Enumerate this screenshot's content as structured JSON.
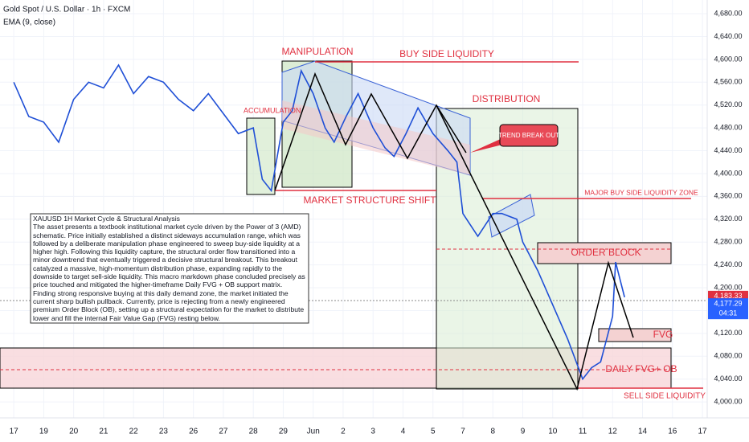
{
  "chart_data": {
    "type": "line",
    "title": "Gold Spot / U.S. Dollar · 1h · FXCM",
    "subtitle": "EMA (9, close)",
    "color": "#1f4fd6",
    "x": [
      0,
      0.5,
      1,
      1.5,
      2,
      2.5,
      3,
      3.5,
      4,
      4.5,
      5,
      5.5,
      6,
      6.5,
      7,
      7.5,
      8,
      8.3,
      8.6,
      9,
      9.3,
      9.6,
      10,
      10.4,
      10.7,
      11.1,
      11.5,
      12,
      12.4,
      12.7,
      13.1,
      13.5,
      14,
      14.5,
      14.8,
      15,
      15.5,
      16,
      16.3,
      16.8,
      17,
      17.5,
      18,
      18.5,
      19,
      19.3,
      19.6,
      20,
      20.1,
      20.4
    ],
    "values": [
      4560,
      4500,
      4490,
      4455,
      4530,
      4560,
      4550,
      4590,
      4540,
      4570,
      4560,
      4530,
      4510,
      4540,
      4505,
      4470,
      4480,
      4390,
      4370,
      4490,
      4510,
      4580,
      4540,
      4480,
      4455,
      4500,
      4540,
      4480,
      4445,
      4430,
      4470,
      4515,
      4470,
      4440,
      4420,
      4330,
      4290,
      4330,
      4330,
      4320,
      4280,
      4230,
      4170,
      4110,
      4040,
      4060,
      4070,
      4150,
      4245,
      4183.33
    ],
    "xlim": [
      -0.46,
      23.16
    ],
    "ylim": [
      3972,
      4704
    ],
    "xticks": [
      {
        "value": 0,
        "label": "17"
      },
      {
        "value": 1,
        "label": "19"
      },
      {
        "value": 2,
        "label": "20"
      },
      {
        "value": 3,
        "label": "21"
      },
      {
        "value": 4,
        "label": "22"
      },
      {
        "value": 5,
        "label": "23"
      },
      {
        "value": 6,
        "label": "26"
      },
      {
        "value": 7,
        "label": "27"
      },
      {
        "value": 8,
        "label": "28"
      },
      {
        "value": 9,
        "label": "29"
      },
      {
        "value": 10,
        "label": "Jun"
      },
      {
        "value": 11,
        "label": "2"
      },
      {
        "value": 12,
        "label": "3"
      },
      {
        "value": 13,
        "label": "4"
      },
      {
        "value": 14,
        "label": "5"
      },
      {
        "value": 15,
        "label": "7"
      },
      {
        "value": 16,
        "label": "8"
      },
      {
        "value": 17,
        "label": "9"
      },
      {
        "value": 18,
        "label": "10"
      },
      {
        "value": 19,
        "label": "11"
      },
      {
        "value": 20,
        "label": "12"
      },
      {
        "value": 21,
        "label": "14"
      },
      {
        "value": 22,
        "label": "16"
      },
      {
        "value": 23,
        "label": "17"
      }
    ],
    "yticks": [
      {
        "value": 4000,
        "label": "4,000.00"
      },
      {
        "value": 4040,
        "label": "4,040.00"
      },
      {
        "value": 4080,
        "label": "4,080.00"
      },
      {
        "value": 4120,
        "label": "4,120.00"
      },
      {
        "value": 4160,
        "label": "4,160.00"
      },
      {
        "value": 4200,
        "label": "4,200.00"
      },
      {
        "value": 4240,
        "label": "4,240.00"
      },
      {
        "value": 4280,
        "label": "4,280.00"
      },
      {
        "value": 4320,
        "label": "4,320.00"
      },
      {
        "value": 4360,
        "label": "4,360.00"
      },
      {
        "value": 4400,
        "label": "4,400.00"
      },
      {
        "value": 4440,
        "label": "4,440.00"
      },
      {
        "value": 4480,
        "label": "4,480.00"
      },
      {
        "value": 4520,
        "label": "4,520.00"
      },
      {
        "value": 4560,
        "label": "4,560.00"
      },
      {
        "value": 4600,
        "label": "4,600.00"
      },
      {
        "value": 4640,
        "label": "4,640.00"
      },
      {
        "value": 4680,
        "label": "4,680.00"
      }
    ],
    "last_price": {
      "value": 4183.33,
      "label": "4,183.33"
    },
    "bid_price": {
      "value": 4177.29,
      "label": "4,177.29"
    },
    "countdown": "04:31",
    "annotations": {
      "accumulation": "ACCUMULATION",
      "manipulation": "MANIPULATION",
      "buy_side": "BUY SIDE LIQUIDITY",
      "distribution": "DISTRIBUTION",
      "trend_break": "TREND BREAK OUT",
      "mss": "MARKET STRUCTURE SHIFT",
      "major_buy": "MAJOR BUY SIDE LIQUIDITY ZONE",
      "order_block": "ORDER BLOCK",
      "fvg": "FVG",
      "daily_fvg": "DAILY FVG+ OB",
      "sell_side": "SELL SIDE LIQUIDITY"
    },
    "note_title": "XAUUSD 1H Market Cycle & Structural Analysis",
    "note": "The asset presents a textbook institutional market cycle driven by the Power of 3 (AMD) schematic. Price initially established a distinct sideways accumulation range, which was followed by a deliberate manipulation phase engineered to sweep buy-side liquidity at a higher high. Following this liquidity capture, the structural order flow transitioned into a minor downtrend that eventually triggered a decisive structural breakout. This breakout catalyzed a massive, high-momentum distribution phase, expanding rapidly to the downside to target sell-side liquidity. This macro markdown phase concluded precisely as price touched and mitigated the higher-timeframe Daily FVG + OB support matrix. Finding strong responsive buying at this daily demand zone, the market initiated the current sharp bullish pullback. Currently, price is rejecting from a newly engineered premium Order Block (OB), setting up a structural expectation for the market to distribute lower and fill the internal Fair Value Gap (FVG) resting below."
  }
}
